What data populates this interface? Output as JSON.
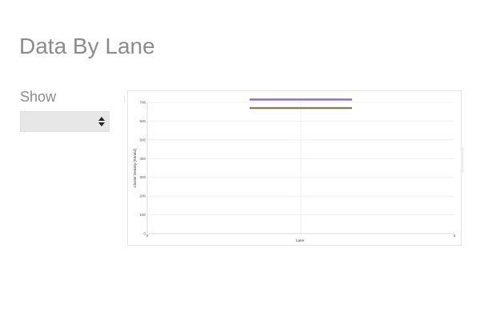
{
  "page": {
    "title": "Data By Lane"
  },
  "controls": {
    "show_label": "Show",
    "show_select_value": ""
  },
  "chart_data": {
    "type": "line",
    "title": "",
    "xlabel": "Lane",
    "ylabel": "Cluster Density (K/mm2)",
    "xlim": [
      0,
      3
    ],
    "ylim": [
      0,
      700
    ],
    "grid": true,
    "y_ticks": [
      0,
      100,
      200,
      300,
      400,
      500,
      600,
      700
    ],
    "x_ticks": [
      {
        "value": 0,
        "label": "0"
      },
      {
        "value": 3,
        "label": "3"
      }
    ],
    "series": [
      {
        "color": "#8a63d2",
        "x": [
          1,
          2
        ],
        "values": [
          715,
          715
        ]
      },
      {
        "color": "#8b7a5e",
        "x": [
          1,
          2
        ],
        "values": [
          670,
          670
        ]
      }
    ]
  }
}
